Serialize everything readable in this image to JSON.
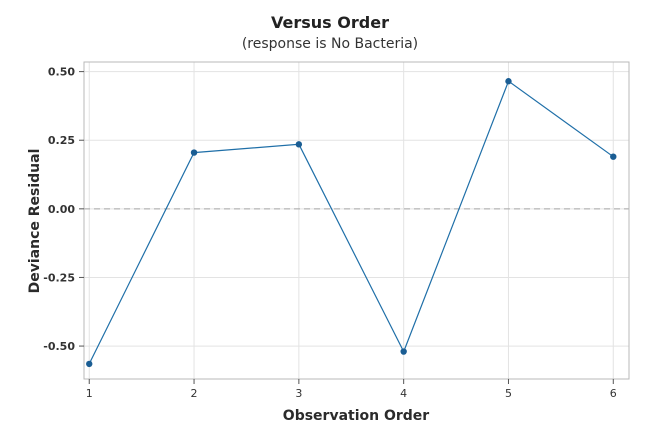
{
  "chart_data": {
    "type": "line",
    "title": "Versus Order",
    "subtitle": "(response is No Bacteria)",
    "xlabel": "Observation Order",
    "ylabel": "Deviance Residual",
    "x": [
      1,
      2,
      3,
      4,
      5,
      6
    ],
    "x_tick_labels": [
      "1",
      "2",
      "3",
      "4",
      "5",
      "6"
    ],
    "y_tick_values": [
      -0.5,
      -0.25,
      0.0,
      0.25,
      0.5
    ],
    "y_tick_labels": [
      "-0.50",
      "-0.25",
      "0.00",
      "0.25",
      "0.50"
    ],
    "xlim": [
      0.95,
      6.15
    ],
    "ylim": [
      -0.62,
      0.535
    ],
    "reference_line": 0.0,
    "grid": true,
    "legend": "none",
    "series": [
      {
        "values": [
          -0.565,
          0.205,
          0.235,
          -0.52,
          0.465,
          0.19
        ]
      }
    ],
    "colors": {
      "line": "#1f6fa8",
      "marker": "#1a5d93",
      "grid": "#e3e3e3",
      "reference": "#a6a6a6",
      "frame": "#b9b9b9"
    }
  }
}
